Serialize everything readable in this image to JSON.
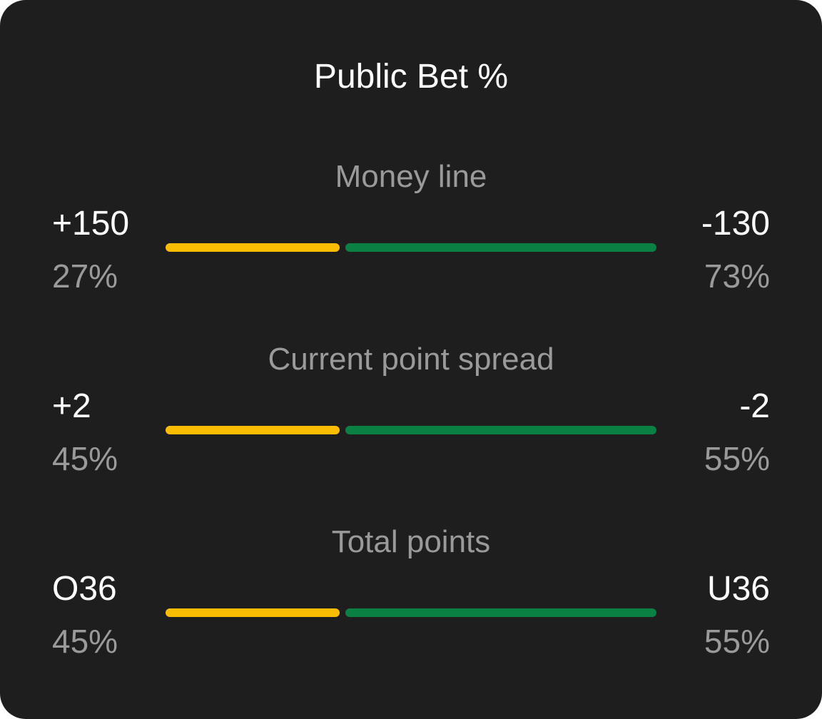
{
  "title": "Public Bet %",
  "colors": {
    "background": "#1e1e1e",
    "left_bar": "#fbbc04",
    "right_bar": "#0a8043",
    "primary_text": "#ffffff",
    "secondary_text": "#9a9a9a"
  },
  "sections": [
    {
      "label": "Money line",
      "left": {
        "odds": "+150",
        "pct_text": "27%"
      },
      "right": {
        "odds": "-130",
        "pct_text": "73%"
      },
      "bar_split_fraction": 0.355
    },
    {
      "label": "Current point spread",
      "left": {
        "odds": "+2",
        "pct_text": "45%"
      },
      "right": {
        "odds": "-2",
        "pct_text": "55%"
      },
      "bar_split_fraction": 0.355
    },
    {
      "label": "Total points",
      "left": {
        "odds": "O36",
        "pct_text": "45%"
      },
      "right": {
        "odds": "U36",
        "pct_text": "55%"
      },
      "bar_split_fraction": 0.355
    }
  ]
}
